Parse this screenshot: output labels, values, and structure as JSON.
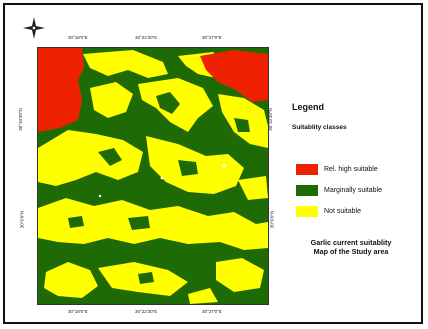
{
  "map": {
    "legend_title": "Legend",
    "classes_title": "Suitablity classes",
    "classes": [
      {
        "label": "Rel. high suitable",
        "color": "#ee2200"
      },
      {
        "label": "Marginally suitable",
        "color": "#1e6b06"
      },
      {
        "label": "Not suitable",
        "color": "#ffff00"
      }
    ],
    "caption_line1": "Garlic current suitablity",
    "caption_line2": "Map of the Study area",
    "coords": {
      "top": [
        "30°18'0\"E",
        "30°22'30\"E",
        "30°27'0\"E"
      ],
      "bottom": [
        "30°18'0\"E",
        "30°22'30\"E",
        "30°27'0\"E"
      ],
      "left": [
        "30°10'30\"N",
        "30°6'0\"N"
      ],
      "right": [
        "30°10'30\"N",
        "30°6'0\"N"
      ]
    },
    "north_arrow": "north-arrow-icon"
  }
}
